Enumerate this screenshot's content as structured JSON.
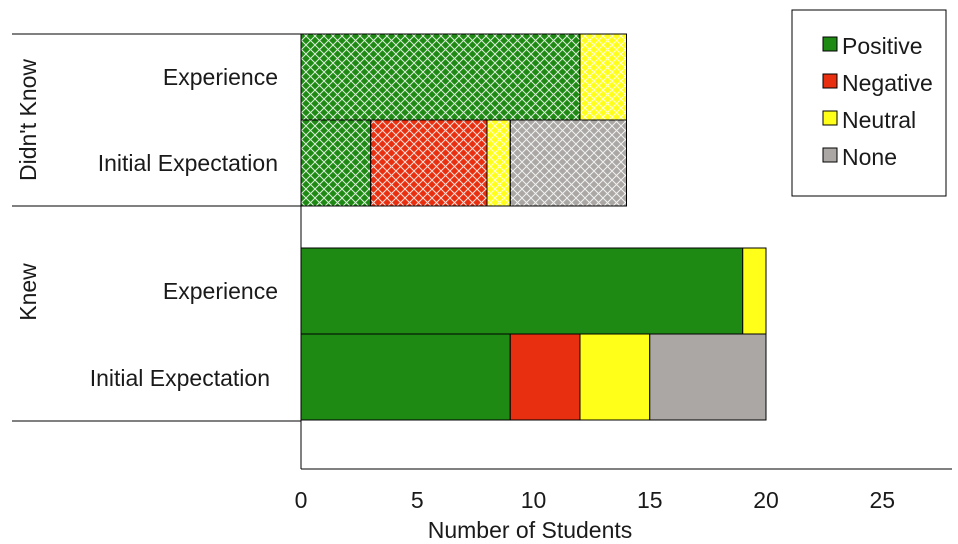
{
  "chart_data": {
    "type": "bar",
    "orientation": "horizontal",
    "stacked": true,
    "xlabel": "Number of Students",
    "xlim": [
      0,
      28
    ],
    "xticks": [
      0,
      5,
      10,
      15,
      20,
      25
    ],
    "legend_position": "top-right",
    "groups": [
      {
        "label": "Didn't Know",
        "bars": [
          {
            "label": "Experience",
            "hatched": true,
            "values": [
              12,
              0,
              2,
              0
            ]
          },
          {
            "label": "Initial Expectation",
            "hatched": true,
            "values": [
              3,
              5,
              1,
              5
            ]
          }
        ]
      },
      {
        "label": "Knew",
        "bars": [
          {
            "label": "Experience",
            "hatched": false,
            "values": [
              19,
              0,
              1,
              0
            ]
          },
          {
            "label": "Initial Expectation",
            "hatched": false,
            "values": [
              9,
              3,
              3,
              5
            ]
          }
        ]
      }
    ],
    "series": [
      {
        "name": "Positive",
        "color": "#1e8a14"
      },
      {
        "name": "Negative",
        "color": "#e83010"
      },
      {
        "name": "Neutral",
        "color": "#ffff1a"
      },
      {
        "name": "None",
        "color": "#aaa7a5"
      }
    ]
  }
}
